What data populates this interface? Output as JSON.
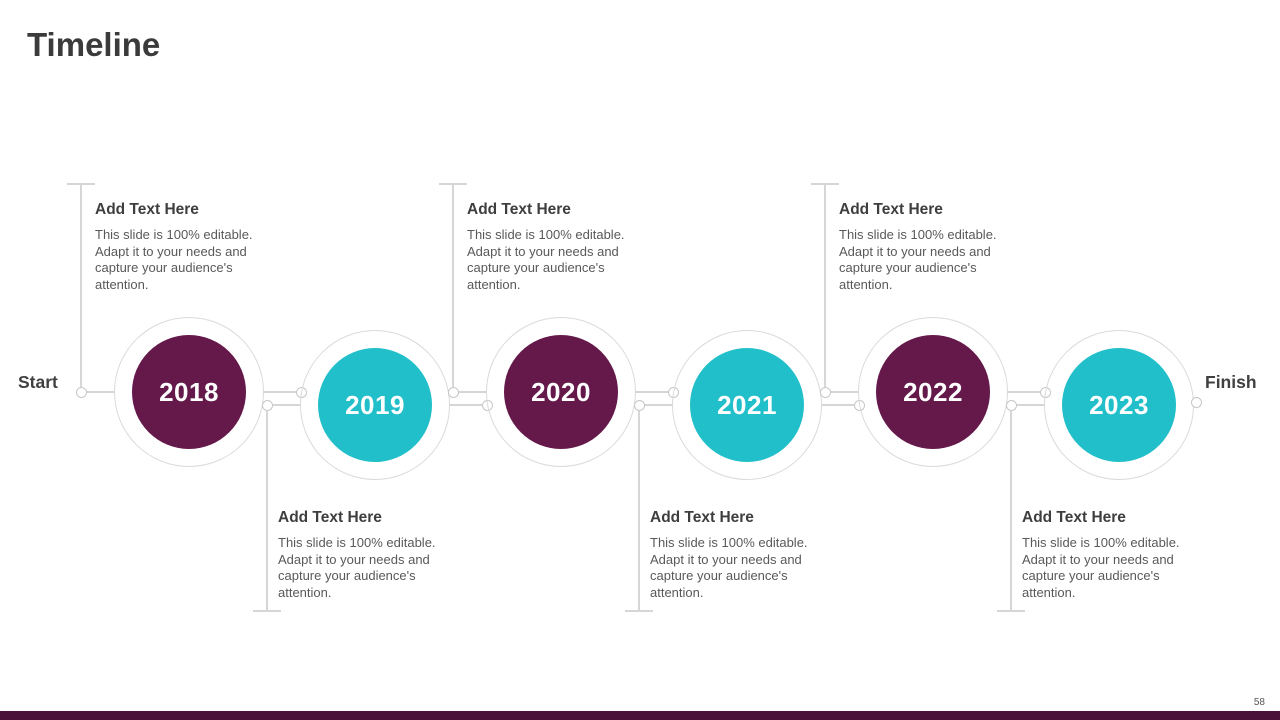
{
  "slide": {
    "title": "Timeline",
    "start_label": "Start",
    "finish_label": "Finish",
    "page_number": "58"
  },
  "colors": {
    "purple": "#65194b",
    "teal": "#21bfca",
    "line": "#d6d6d6",
    "footer_bar": "#4a1139"
  },
  "timeline": {
    "items": [
      {
        "year": "2018",
        "color": "purple",
        "placement": "above",
        "heading": "Add Text Here",
        "body": "This slide is 100% editable. Adapt it to your needs and capture your audience's attention."
      },
      {
        "year": "2019",
        "color": "teal",
        "placement": "below",
        "heading": "Add Text Here",
        "body": "This slide is 100% editable. Adapt it to your needs and capture your audience's attention."
      },
      {
        "year": "2020",
        "color": "purple",
        "placement": "above",
        "heading": "Add Text Here",
        "body": "This slide is 100% editable. Adapt it to your needs and capture your audience's attention."
      },
      {
        "year": "2021",
        "color": "teal",
        "placement": "below",
        "heading": "Add Text Here",
        "body": "This slide is 100% editable. Adapt it to your needs and capture your audience's attention."
      },
      {
        "year": "2022",
        "color": "purple",
        "placement": "above",
        "heading": "Add Text Here",
        "body": "This slide is 100% editable. Adapt it to your needs and capture your audience's attention."
      },
      {
        "year": "2023",
        "color": "teal",
        "placement": "below",
        "heading": "Add Text Here",
        "body": "This slide is 100% editable. Adapt it to your needs and capture your audience's attention."
      }
    ]
  }
}
